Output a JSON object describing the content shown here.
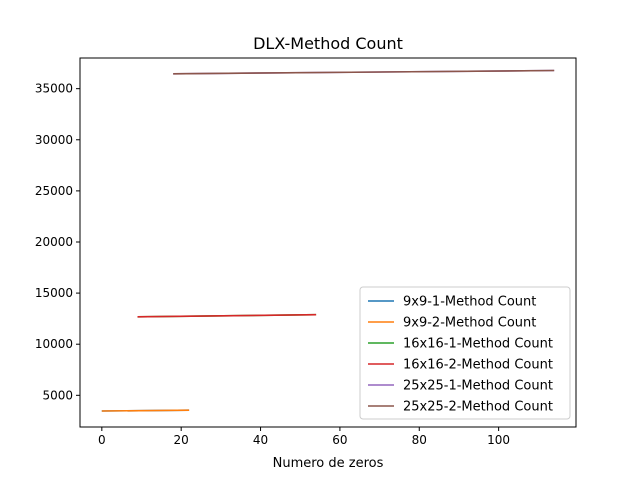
{
  "chart_data": {
    "type": "line",
    "title": "DLX-Method Count",
    "xlabel": "Numero de zeros",
    "ylabel": "",
    "xlim": [
      -5.5,
      119.5
    ],
    "ylim": [
      1900,
      38000
    ],
    "xticks": [
      0,
      20,
      40,
      60,
      80,
      100
    ],
    "yticks": [
      5000,
      10000,
      15000,
      20000,
      25000,
      30000,
      35000
    ],
    "grid": false,
    "legend": "lower-right",
    "series": [
      {
        "name": "9x9-1-Method Count",
        "color": "#1f77b4",
        "x": [
          0,
          22
        ],
        "y": [
          3470,
          3540
        ]
      },
      {
        "name": "9x9-2-Method Count",
        "color": "#ff7f0e",
        "x": [
          0,
          22
        ],
        "y": [
          3470,
          3540
        ]
      },
      {
        "name": "16x16-1-Method Count",
        "color": "#2ca02c",
        "x": [
          9,
          54
        ],
        "y": [
          12680,
          12890
        ]
      },
      {
        "name": "16x16-2-Method Count",
        "color": "#d62728",
        "x": [
          9,
          54
        ],
        "y": [
          12680,
          12890
        ]
      },
      {
        "name": "25x25-1-Method Count",
        "color": "#9467bd",
        "x": [
          18,
          114
        ],
        "y": [
          36450,
          36780
        ]
      },
      {
        "name": "25x25-2-Method Count",
        "color": "#8c564b",
        "x": [
          18,
          114
        ],
        "y": [
          36450,
          36780
        ]
      }
    ]
  }
}
